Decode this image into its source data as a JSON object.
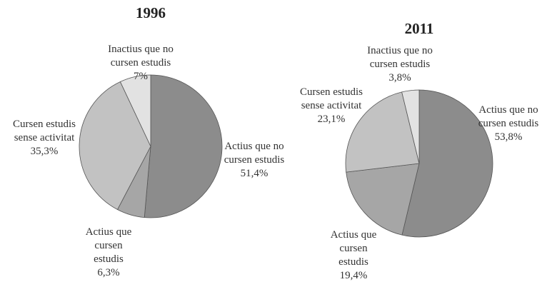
{
  "chart_data": [
    {
      "type": "pie",
      "title": "1996",
      "categories": [
        "Actius que no cursen estudis",
        "Actius que cursen estudis",
        "Cursen estudis sense activitat",
        "Inactius que no cursen estudis"
      ],
      "values": [
        51.4,
        6.3,
        35.3,
        7
      ],
      "value_labels": [
        "51,4%",
        "6,3%",
        "35,3%",
        "7%"
      ],
      "colors": [
        "#8c8c8c",
        "#a6a6a6",
        "#c2c2c2",
        "#e2e2e2"
      ]
    },
    {
      "type": "pie",
      "title": "2011",
      "categories": [
        "Actius que no cursen estudis",
        "Actius que cursen estudis",
        "Cursen estudis sense activitat",
        "Inactius que no cursen estudis"
      ],
      "values": [
        53.8,
        19.4,
        23.1,
        3.8
      ],
      "value_labels": [
        "53,8%",
        "19,4%",
        "23,1%",
        "3,8%"
      ],
      "colors": [
        "#8c8c8c",
        "#a6a6a6",
        "#c2c2c2",
        "#e2e2e2"
      ]
    }
  ]
}
